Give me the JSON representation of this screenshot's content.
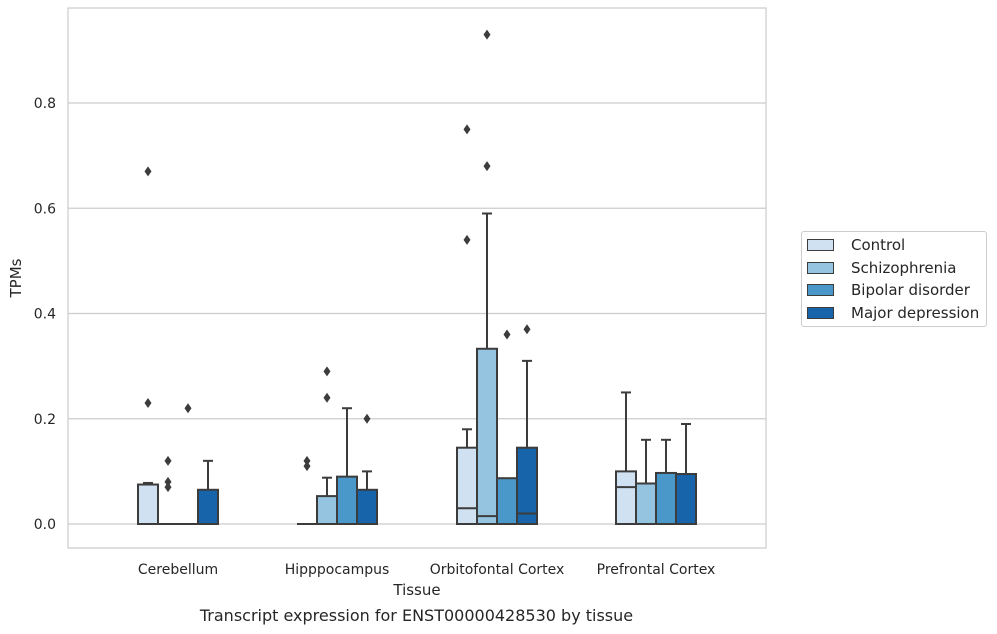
{
  "chart_data": {
    "type": "box",
    "title": "",
    "caption": "Transcript expression for ENST00000428530 by tissue",
    "xlabel": "Tissue",
    "ylabel": "TPMs",
    "ylim": [
      -0.045,
      0.98
    ],
    "yticks": [
      "0.0",
      "0.2",
      "0.4",
      "0.6",
      "0.8"
    ],
    "ytick_values": [
      0.0,
      0.2,
      0.4,
      0.6,
      0.8
    ],
    "grid": "horizontal",
    "legend_position": "right",
    "categories": [
      "Cerebellum",
      "Hipppocampus",
      "Orbitofontal Cortex",
      "Prefrontal Cortex"
    ],
    "series": [
      {
        "name": "Control",
        "color": "#d0e1f2",
        "boxes": [
          {
            "q1": 0.0,
            "median": 0.0,
            "q3": 0.075,
            "whisker_low": 0.0,
            "whisker_high": 0.078,
            "fliers": [
              0.67,
              0.23
            ]
          },
          {
            "q1": 0.0,
            "median": 0.0,
            "q3": 0.0,
            "whisker_low": 0.0,
            "whisker_high": 0.0,
            "fliers": [
              0.12,
              0.11
            ]
          },
          {
            "q1": 0.0,
            "median": 0.03,
            "q3": 0.145,
            "whisker_low": 0.0,
            "whisker_high": 0.18,
            "fliers": [
              0.75,
              0.54
            ]
          },
          {
            "q1": 0.0,
            "median": 0.07,
            "q3": 0.1,
            "whisker_low": 0.0,
            "whisker_high": 0.25,
            "fliers": []
          }
        ]
      },
      {
        "name": "Schizophrenia",
        "color": "#94c4df",
        "boxes": [
          {
            "q1": 0.0,
            "median": 0.0,
            "q3": 0.0,
            "whisker_low": 0.0,
            "whisker_high": 0.0,
            "fliers": [
              0.12,
              0.08,
              0.07
            ]
          },
          {
            "q1": 0.0,
            "median": 0.0,
            "q3": 0.053,
            "whisker_low": 0.0,
            "whisker_high": 0.088,
            "fliers": [
              0.29,
              0.24
            ]
          },
          {
            "q1": 0.0,
            "median": 0.015,
            "q3": 0.333,
            "whisker_low": 0.0,
            "whisker_high": 0.59,
            "fliers": [
              0.93,
              0.68
            ]
          },
          {
            "q1": 0.0,
            "median": 0.0,
            "q3": 0.077,
            "whisker_low": 0.0,
            "whisker_high": 0.16,
            "fliers": []
          }
        ]
      },
      {
        "name": "Bipolar disorder",
        "color": "#4a98c9",
        "boxes": [
          {
            "q1": 0.0,
            "median": 0.0,
            "q3": 0.0,
            "whisker_low": 0.0,
            "whisker_high": 0.0,
            "fliers": [
              0.22
            ]
          },
          {
            "q1": 0.0,
            "median": 0.0,
            "q3": 0.09,
            "whisker_low": 0.0,
            "whisker_high": 0.22,
            "fliers": []
          },
          {
            "q1": 0.0,
            "median": 0.0,
            "q3": 0.087,
            "whisker_low": 0.0,
            "whisker_high": 0.087,
            "fliers": [
              0.36
            ]
          },
          {
            "q1": 0.0,
            "median": 0.0,
            "q3": 0.097,
            "whisker_low": 0.0,
            "whisker_high": 0.16,
            "fliers": []
          }
        ]
      },
      {
        "name": "Major depression",
        "color": "#1764ab",
        "boxes": [
          {
            "q1": 0.0,
            "median": 0.0,
            "q3": 0.065,
            "whisker_low": 0.0,
            "whisker_high": 0.12,
            "fliers": []
          },
          {
            "q1": 0.0,
            "median": 0.0,
            "q3": 0.065,
            "whisker_low": 0.0,
            "whisker_high": 0.1,
            "fliers": [
              0.2
            ]
          },
          {
            "q1": 0.0,
            "median": 0.02,
            "q3": 0.145,
            "whisker_low": 0.0,
            "whisker_high": 0.31,
            "fliers": [
              0.37
            ]
          },
          {
            "q1": 0.0,
            "median": 0.0,
            "q3": 0.095,
            "whisker_low": 0.0,
            "whisker_high": 0.19,
            "fliers": []
          }
        ]
      }
    ]
  }
}
